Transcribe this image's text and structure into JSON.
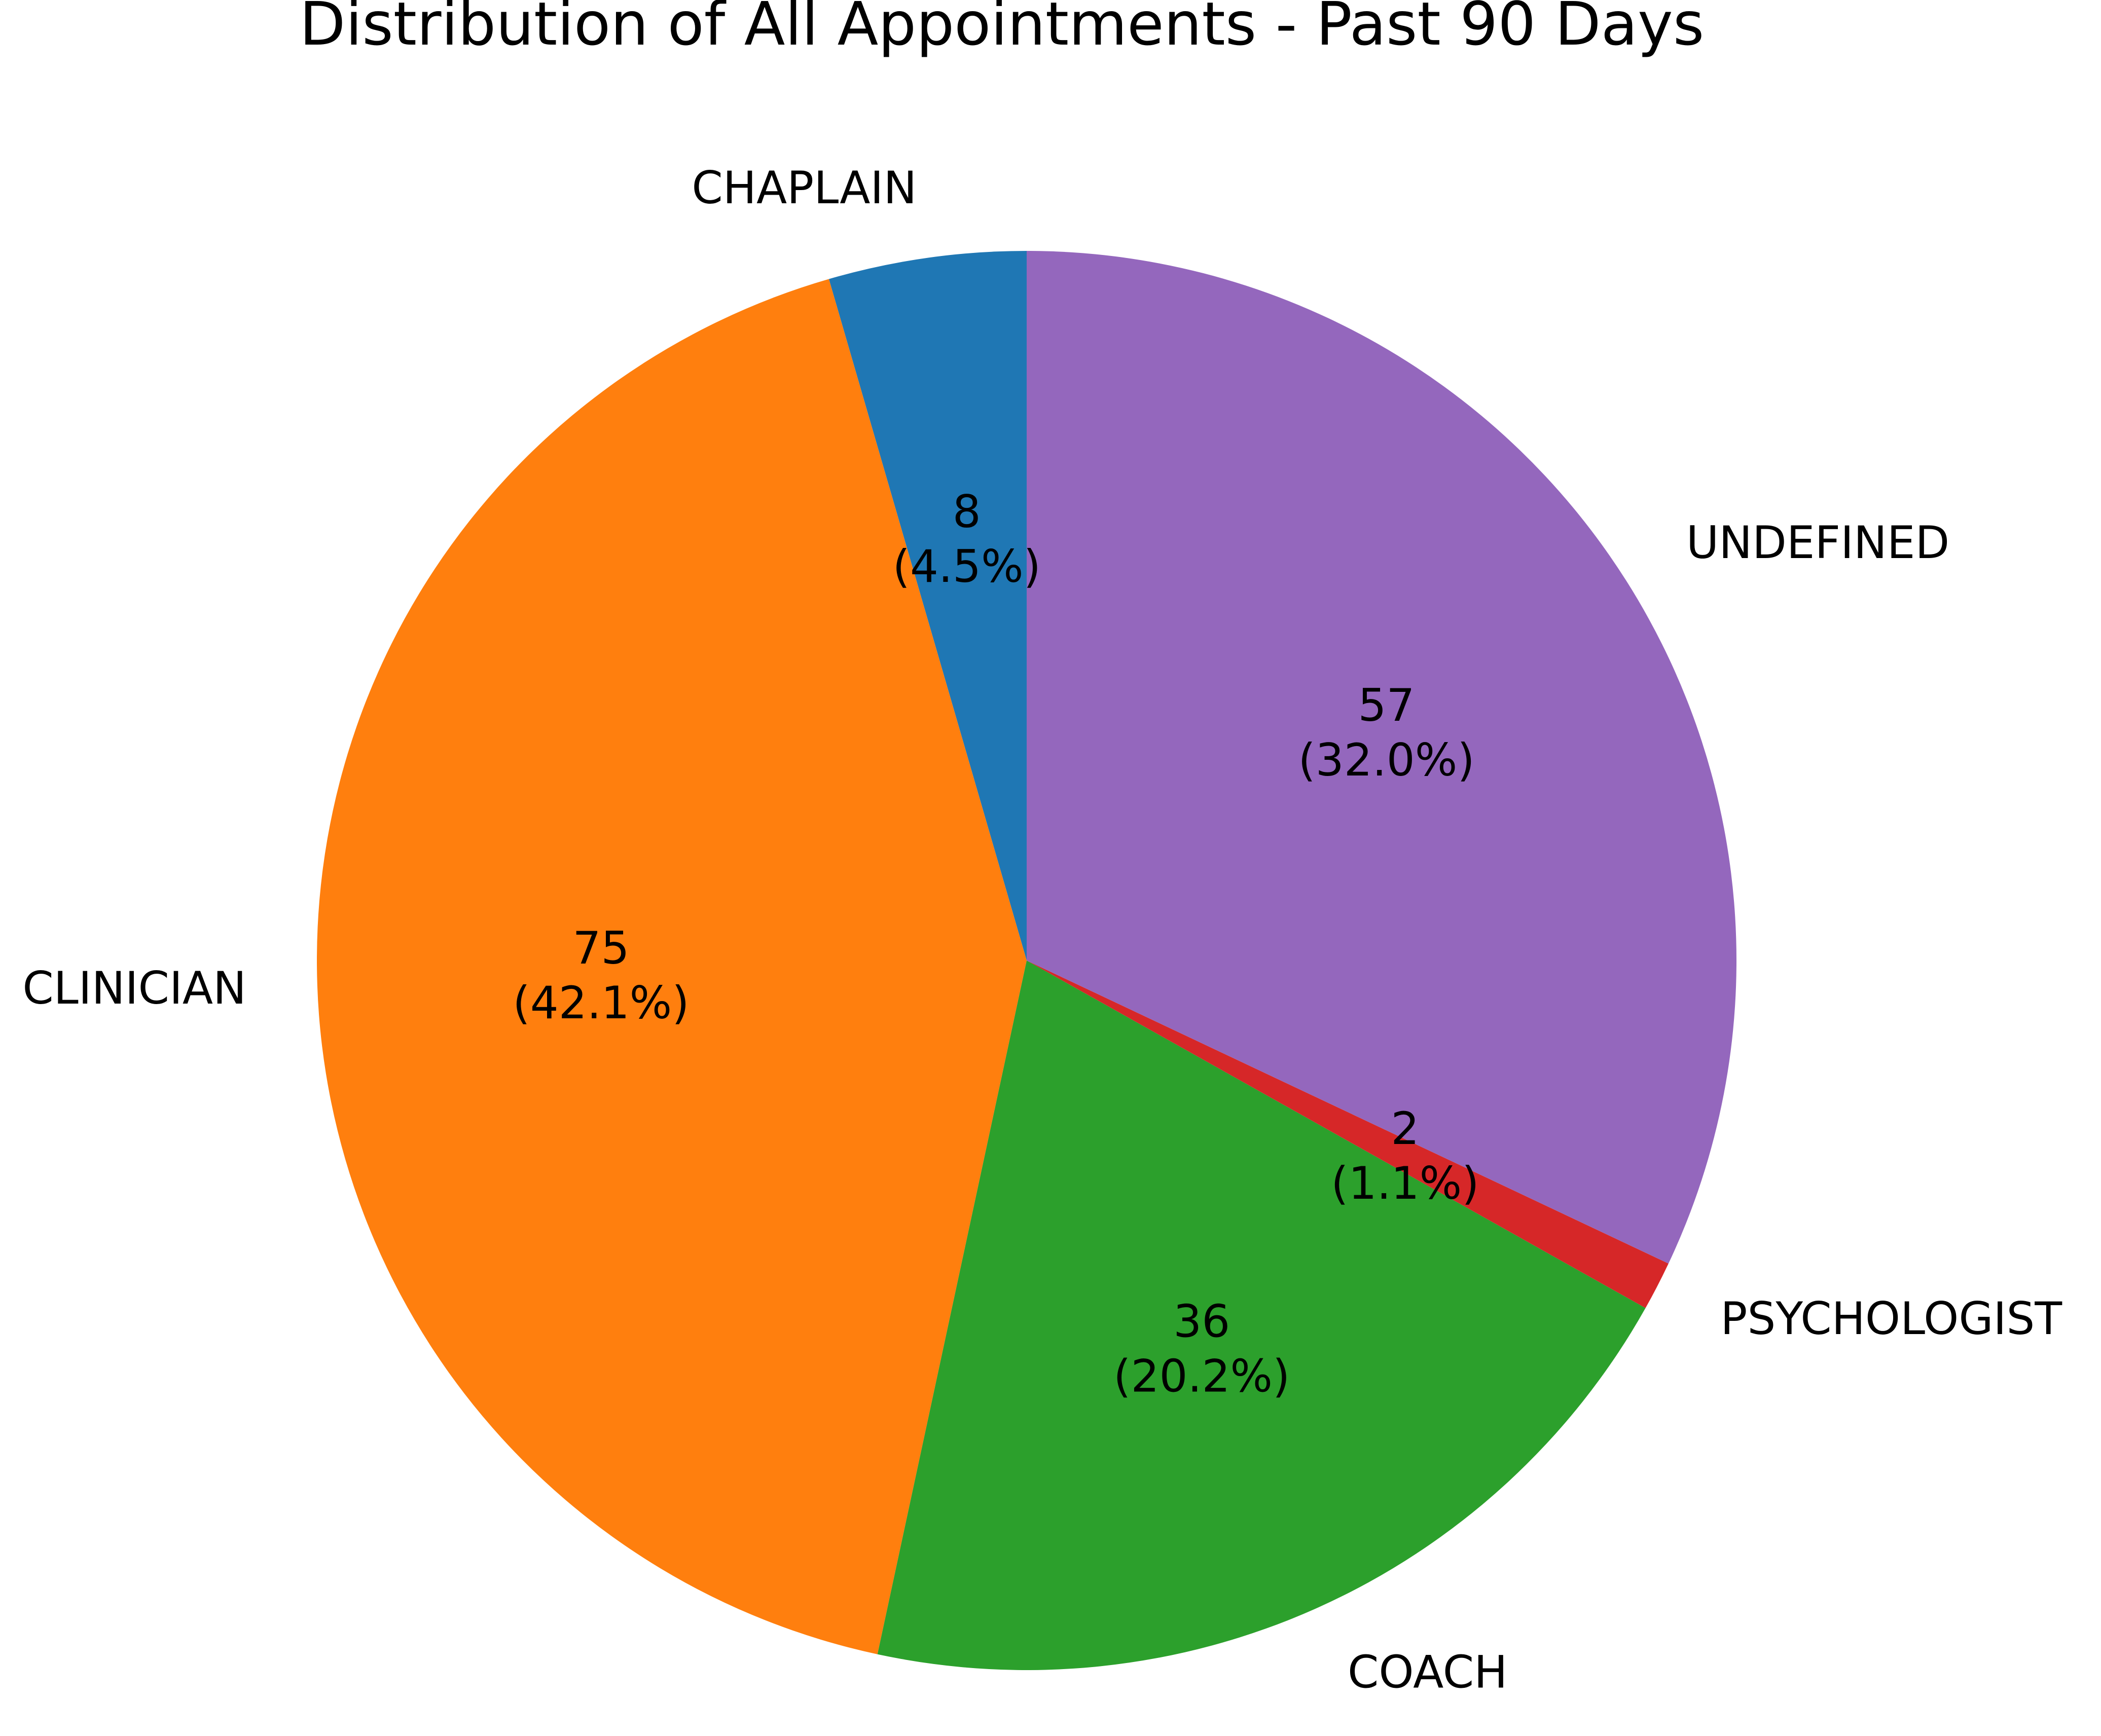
{
  "chart_data": {
    "type": "pie",
    "title": "Distribution of All Appointments - Past 90 Days",
    "start_angle_deg": 90,
    "direction": "counterclockwise",
    "slices": [
      {
        "label": "CHAPLAIN",
        "value": 8,
        "percent_label": "(4.5%)",
        "color": "#1f77b4"
      },
      {
        "label": "CLINICIAN",
        "value": 75,
        "percent_label": "(42.1%)",
        "color": "#ff7f0e"
      },
      {
        "label": "COACH",
        "value": 36,
        "percent_label": "(20.2%)",
        "color": "#2ca02c"
      },
      {
        "label": "PSYCHOLOGIST",
        "value": 2,
        "percent_label": "(1.1%)",
        "color": "#d62728"
      },
      {
        "label": "UNDEFINED",
        "value": 57,
        "percent_label": "(32.0%)",
        "color": "#9467bd"
      }
    ]
  }
}
